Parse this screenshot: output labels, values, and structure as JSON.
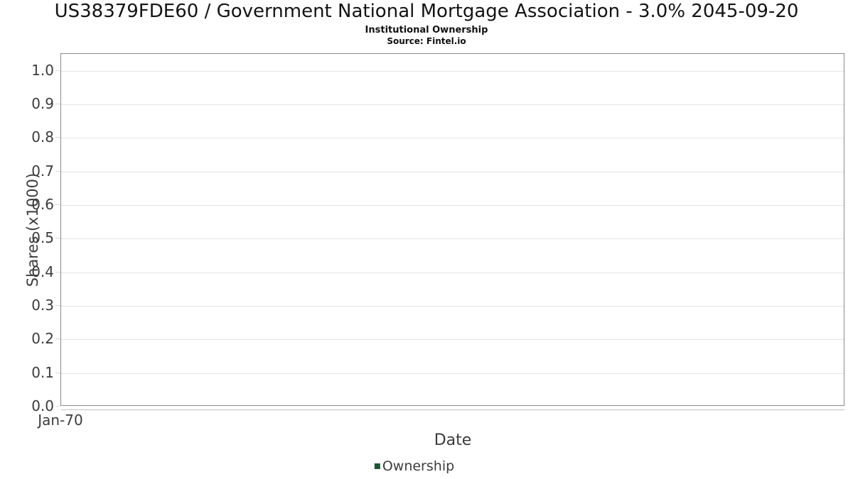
{
  "chart": {
    "title": "US38379FDE60 / Government National Mortgage Association - 3.0% 2045-09-20",
    "subtitle": "Institutional Ownership",
    "source": "Source: Fintel.io"
  },
  "chart_data": {
    "type": "line",
    "title": "US38379FDE60 / Government National Mortgage Association - 3.0% 2045-09-20",
    "subtitle": "Institutional Ownership",
    "source": "Source: Fintel.io",
    "xlabel": "Date",
    "ylabel": "Shares (x1000)",
    "x_tick_labels": [
      "Jan-70"
    ],
    "y_ticks": [
      0.0,
      0.1,
      0.2,
      0.3,
      0.4,
      0.5,
      0.6,
      0.7,
      0.8,
      0.9,
      1.0
    ],
    "y_tick_labels": [
      "0.0",
      "0.1",
      "0.2",
      "0.3",
      "0.4",
      "0.5",
      "0.6",
      "0.7",
      "0.8",
      "0.9",
      "1.0"
    ],
    "ylim": [
      0,
      1.05
    ],
    "grid": true,
    "legend": {
      "position": "bottom",
      "entries": [
        {
          "label": "Ownership",
          "color": "#1d5632"
        }
      ]
    },
    "series": [
      {
        "name": "Ownership",
        "x": [],
        "values": []
      }
    ],
    "colors": {
      "plot_border": "#8a8a8a",
      "gridline": "#e4e4e4",
      "tick_mark": "#d9d9d9",
      "axis_line": "#c2c2c2",
      "text": "#3c3c3c",
      "title_text": "#141414"
    }
  }
}
